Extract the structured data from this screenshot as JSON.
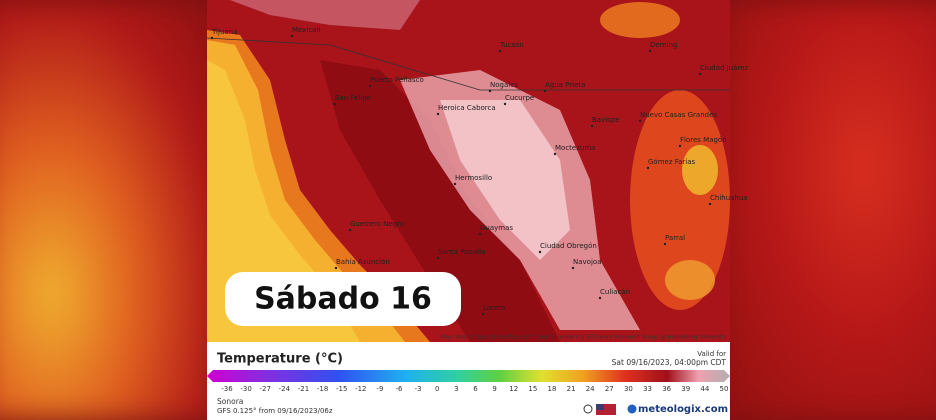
{
  "overlay": {
    "day_label": "Sábado 16"
  },
  "map": {
    "places": [
      "Tijuana",
      "Mexicali",
      "Tucson",
      "Nogales",
      "Agua Prieta",
      "Deming",
      "Ciudad Juárez",
      "Puerto Peñasco",
      "San Felipe",
      "Heroica Caborca",
      "Cucurpe",
      "Moctezuma",
      "Hermosillo",
      "Bavispe",
      "Nuevo Casas Grandes",
      "Flores Magón",
      "Gómez Farías",
      "Guaymas",
      "Ciudad Obregón",
      "Navojoa",
      "Santa Rosalía",
      "Guerrero Negro",
      "Bahía Asunción",
      "Loreto",
      "Chihuahua",
      "Parral",
      "Culiacán"
    ],
    "attribution": "Map data © OpenStreetMap contributors, rendering GIScience Research Group @ Heidelberg University"
  },
  "legend": {
    "title": "Temperature (°C)",
    "valid_label": "Valid for",
    "valid_time": "Sat 09/16/2023, 04:00pm CDT",
    "ticks": [
      -36,
      -30,
      -27,
      -24,
      -21,
      -18,
      -15,
      -12,
      -9,
      -6,
      -3,
      0,
      3,
      6,
      9,
      12,
      15,
      18,
      21,
      24,
      27,
      30,
      33,
      36,
      39,
      44,
      50
    ],
    "region": "Sonora",
    "model": "GFS 0.125° from 09/16/2023/06z",
    "brand": "meteologix.com"
  }
}
